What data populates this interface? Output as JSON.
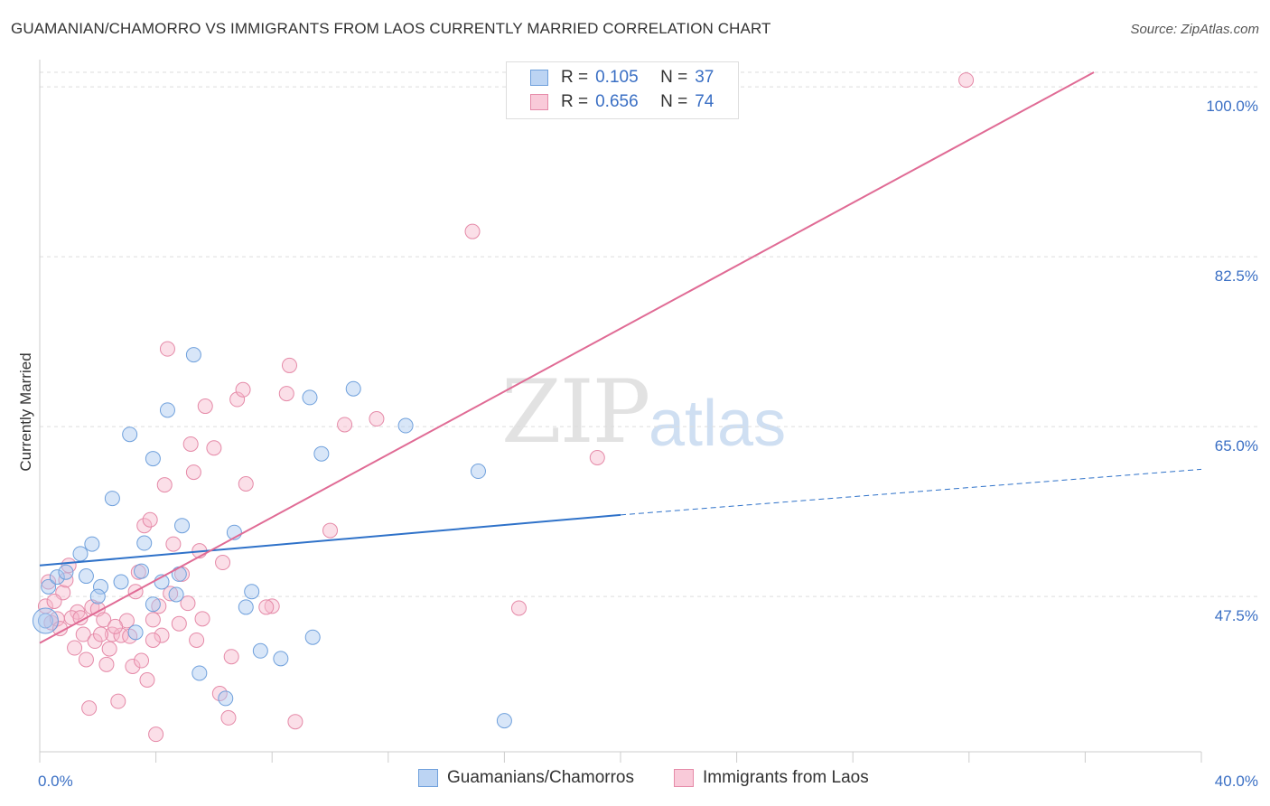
{
  "title": "GUAMANIAN/CHAMORRO VS IMMIGRANTS FROM LAOS CURRENTLY MARRIED CORRELATION CHART",
  "source": "Source: ZipAtlas.com",
  "watermark": {
    "zip": "ZIP",
    "atlas": "atlas"
  },
  "legend_top": {
    "rows": [
      {
        "r_label": "R =",
        "r_value": "0.105",
        "n_label": "N =",
        "n_value": "37"
      },
      {
        "r_label": "R =",
        "r_value": "0.656",
        "n_label": "N =",
        "n_value": "74"
      }
    ]
  },
  "legend_bottom": {
    "items": [
      "Guamanians/Chamorros",
      "Immigrants from Laos"
    ]
  },
  "colors": {
    "blue_fill": "#a8c8f0",
    "blue_stroke": "#6fa0dc",
    "blue_line": "#2f72c9",
    "pink_fill": "#f7b8cc",
    "pink_stroke": "#e58aa8",
    "pink_line": "#e06b95",
    "grid": "#dddddd",
    "tick_label": "#3a6fc4"
  },
  "chart_data": {
    "type": "scatter",
    "title": "GUAMANIAN/CHAMORRO VS IMMIGRANTS FROM LAOS CURRENTLY MARRIED CORRELATION CHART",
    "xlabel": "",
    "ylabel": "Currently Married",
    "xlim": [
      0,
      40
    ],
    "ylim": [
      31.5,
      101.5
    ],
    "x_tick_labels": [
      {
        "value": 0,
        "label": "0.0%"
      },
      {
        "value": 40,
        "label": "40.0%"
      }
    ],
    "y_tick_labels": [
      {
        "value": 47.5,
        "label": "47.5%"
      },
      {
        "value": 65.0,
        "label": "65.0%"
      },
      {
        "value": 82.5,
        "label": "82.5%"
      },
      {
        "value": 100.0,
        "label": "100.0%"
      }
    ],
    "grid": true,
    "series": [
      {
        "name": "Guamanians/Chamorros",
        "r": 0.105,
        "n": 37,
        "points": [
          [
            0.2,
            45.0
          ],
          [
            0.3,
            48.5
          ],
          [
            0.6,
            49.5
          ],
          [
            0.9,
            50.0
          ],
          [
            1.4,
            51.9
          ],
          [
            1.6,
            49.6
          ],
          [
            1.8,
            52.9
          ],
          [
            2.1,
            48.5
          ],
          [
            2.5,
            57.6
          ],
          [
            2.8,
            49.0
          ],
          [
            3.1,
            64.2
          ],
          [
            3.3,
            43.8
          ],
          [
            3.5,
            50.1
          ],
          [
            3.6,
            53.0
          ],
          [
            3.9,
            46.7
          ],
          [
            3.9,
            61.7
          ],
          [
            4.2,
            49.0
          ],
          [
            4.4,
            66.7
          ],
          [
            4.8,
            49.8
          ],
          [
            4.9,
            54.8
          ],
          [
            5.3,
            72.4
          ],
          [
            5.5,
            39.6
          ],
          [
            6.4,
            37.0
          ],
          [
            6.7,
            54.1
          ],
          [
            7.1,
            46.4
          ],
          [
            7.3,
            48.0
          ],
          [
            7.6,
            41.9
          ],
          [
            8.3,
            41.1
          ],
          [
            9.3,
            68.0
          ],
          [
            9.4,
            43.3
          ],
          [
            9.7,
            62.2
          ],
          [
            10.8,
            68.9
          ],
          [
            12.6,
            65.1
          ],
          [
            15.1,
            60.4
          ],
          [
            16.0,
            34.7
          ],
          [
            4.7,
            47.7
          ],
          [
            2.0,
            47.5
          ]
        ]
      },
      {
        "name": "Immigrants from Laos",
        "r": 0.656,
        "n": 74,
        "points": [
          [
            0.2,
            46.5
          ],
          [
            0.3,
            49.0
          ],
          [
            0.4,
            44.8
          ],
          [
            0.6,
            45.2
          ],
          [
            0.8,
            47.9
          ],
          [
            0.9,
            49.2
          ],
          [
            1.0,
            50.7
          ],
          [
            1.2,
            42.2
          ],
          [
            1.3,
            45.9
          ],
          [
            1.5,
            43.6
          ],
          [
            1.6,
            41.0
          ],
          [
            1.7,
            36.0
          ],
          [
            1.8,
            46.4
          ],
          [
            1.9,
            42.9
          ],
          [
            2.0,
            46.2
          ],
          [
            2.2,
            45.1
          ],
          [
            2.3,
            40.5
          ],
          [
            2.4,
            42.1
          ],
          [
            2.5,
            43.6
          ],
          [
            2.7,
            36.7
          ],
          [
            2.8,
            43.5
          ],
          [
            3.0,
            45.0
          ],
          [
            3.1,
            43.4
          ],
          [
            3.2,
            40.3
          ],
          [
            3.3,
            48.0
          ],
          [
            3.4,
            50.0
          ],
          [
            3.5,
            40.9
          ],
          [
            3.6,
            54.8
          ],
          [
            3.7,
            38.9
          ],
          [
            3.8,
            55.4
          ],
          [
            3.9,
            45.1
          ],
          [
            4.0,
            33.3
          ],
          [
            4.1,
            46.5
          ],
          [
            4.2,
            43.5
          ],
          [
            4.3,
            59.0
          ],
          [
            4.4,
            73.0
          ],
          [
            4.6,
            52.9
          ],
          [
            4.8,
            44.7
          ],
          [
            4.9,
            49.8
          ],
          [
            5.1,
            46.8
          ],
          [
            5.2,
            63.2
          ],
          [
            5.3,
            60.3
          ],
          [
            5.4,
            43.0
          ],
          [
            5.5,
            52.2
          ],
          [
            5.7,
            67.1
          ],
          [
            6.0,
            62.8
          ],
          [
            6.2,
            37.5
          ],
          [
            6.3,
            51.0
          ],
          [
            6.5,
            35.0
          ],
          [
            6.6,
            41.3
          ],
          [
            6.8,
            67.8
          ],
          [
            7.0,
            68.8
          ],
          [
            7.1,
            59.1
          ],
          [
            8.0,
            46.5
          ],
          [
            8.5,
            68.4
          ],
          [
            8.6,
            71.3
          ],
          [
            8.8,
            34.6
          ],
          [
            10.0,
            54.3
          ],
          [
            10.5,
            65.2
          ],
          [
            11.6,
            65.8
          ],
          [
            14.9,
            85.1
          ],
          [
            16.5,
            46.3
          ],
          [
            19.2,
            61.8
          ],
          [
            31.9,
            100.7
          ],
          [
            0.5,
            47.0
          ],
          [
            1.1,
            45.3
          ],
          [
            2.6,
            44.4
          ],
          [
            3.9,
            43.0
          ],
          [
            0.7,
            44.2
          ],
          [
            1.4,
            45.3
          ],
          [
            2.1,
            43.6
          ],
          [
            4.5,
            47.8
          ],
          [
            5.6,
            45.2
          ],
          [
            7.8,
            46.4
          ]
        ]
      }
    ],
    "trendlines": [
      {
        "series": "Guamanians/Chamorros",
        "solid": [
          [
            0,
            50.7
          ],
          [
            20,
            55.9
          ]
        ],
        "dashed": [
          [
            20,
            55.9
          ],
          [
            40,
            60.6
          ]
        ]
      },
      {
        "series": "Immigrants from Laos",
        "solid": [
          [
            0,
            42.7
          ],
          [
            36.3,
            101.5
          ]
        ]
      }
    ]
  }
}
